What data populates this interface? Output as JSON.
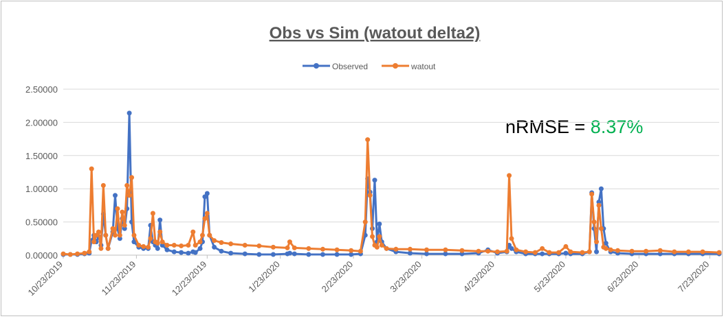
{
  "chart_data": {
    "type": "line",
    "title": "Obs vs Sim (watout delta2)",
    "annotation_label": "nRMSE = ",
    "annotation_value": "8.37%",
    "annotation_value_color": "#00b050",
    "legend": "top",
    "grid": true,
    "x": [
      "10/23/2019",
      "10/26/2019",
      "10/29/2019",
      "11/1/2019",
      "11/3/2019",
      "11/4/2019",
      "11/5/2019",
      "11/6/2019",
      "11/7/2019",
      "11/8/2019",
      "11/9/2019",
      "11/10/2019",
      "11/11/2019",
      "11/13/2019",
      "11/14/2019",
      "11/15/2019",
      "11/16/2019",
      "11/17/2019",
      "11/18/2019",
      "11/19/2019",
      "11/20/2019",
      "11/21/2019",
      "11/22/2019",
      "11/24/2019",
      "11/26/2019",
      "11/28/2019",
      "11/29/2019",
      "11/30/2019",
      "12/1/2019",
      "12/2/2019",
      "12/3/2019",
      "12/4/2019",
      "12/6/2019",
      "12/9/2019",
      "12/12/2019",
      "12/15/2019",
      "12/17/2019",
      "12/18/2019",
      "12/20/2019",
      "12/21/2019",
      "12/22/2019",
      "12/23/2019",
      "12/24/2019",
      "12/26/2019",
      "12/29/2019",
      "1/2/2020",
      "1/8/2020",
      "1/14/2020",
      "1/20/2020",
      "1/26/2020",
      "1/27/2020",
      "1/29/2020",
      "2/4/2020",
      "2/10/2020",
      "2/16/2020",
      "2/22/2020",
      "2/26/2020",
      "2/28/2020",
      "2/29/2020",
      "3/1/2020",
      "3/2/2020",
      "3/3/2020",
      "3/4/2020",
      "3/5/2020",
      "3/6/2020",
      "3/8/2020",
      "3/12/2020",
      "3/18/2020",
      "3/25/2020",
      "4/2/2020",
      "4/9/2020",
      "4/16/2020",
      "4/20/2020",
      "4/24/2020",
      "4/28/2020",
      "4/29/2020",
      "4/30/2020",
      "5/2/2020",
      "5/6/2020",
      "5/10/2020",
      "5/13/2020",
      "5/16/2020",
      "5/20/2020",
      "5/23/2020",
      "5/25/2020",
      "5/30/2020",
      "6/2/2020",
      "6/3/2020",
      "6/4/2020",
      "6/5/2020",
      "6/6/2020",
      "6/7/2020",
      "6/8/2020",
      "6/9/2020",
      "6/11/2020",
      "6/14/2020",
      "6/20/2020",
      "6/26/2020",
      "7/2/2020",
      "7/8/2020",
      "7/14/2020",
      "7/20/2020",
      "7/27/2020"
    ],
    "series": [
      {
        "name": "Observed",
        "color": "#4472c4",
        "values": [
          0.01,
          0.01,
          0.01,
          0.02,
          0.03,
          0.22,
          0.3,
          0.2,
          0.28,
          0.15,
          0.62,
          0.3,
          0.1,
          0.35,
          0.9,
          0.4,
          0.25,
          0.55,
          0.4,
          0.7,
          2.14,
          0.5,
          0.2,
          0.12,
          0.1,
          0.1,
          0.45,
          0.2,
          0.15,
          0.1,
          0.53,
          0.15,
          0.08,
          0.05,
          0.04,
          0.03,
          0.05,
          0.04,
          0.1,
          0.2,
          0.88,
          0.93,
          0.3,
          0.12,
          0.06,
          0.03,
          0.02,
          0.01,
          0.01,
          0.02,
          0.03,
          0.02,
          0.01,
          0.01,
          0.01,
          0.01,
          0.02,
          0.3,
          1.15,
          0.95,
          0.4,
          1.13,
          0.2,
          0.47,
          0.2,
          0.1,
          0.05,
          0.03,
          0.02,
          0.02,
          0.02,
          0.03,
          0.08,
          0.03,
          0.05,
          0.15,
          0.1,
          0.05,
          0.02,
          0.02,
          0.02,
          0.02,
          0.02,
          0.03,
          0.02,
          0.02,
          0.05,
          0.94,
          0.4,
          0.05,
          0.8,
          1.0,
          0.4,
          0.18,
          0.05,
          0.03,
          0.02,
          0.02,
          0.02,
          0.02,
          0.02,
          0.02,
          0.02
        ]
      },
      {
        "name": "watout",
        "color": "#ed7d31",
        "values": [
          0.02,
          0.01,
          0.02,
          0.03,
          0.05,
          1.3,
          0.2,
          0.3,
          0.35,
          0.1,
          1.05,
          0.3,
          0.1,
          0.4,
          0.3,
          0.7,
          0.3,
          0.65,
          0.45,
          1.05,
          0.9,
          1.17,
          0.3,
          0.15,
          0.13,
          0.12,
          0.25,
          0.63,
          0.2,
          0.18,
          0.35,
          0.2,
          0.15,
          0.15,
          0.14,
          0.15,
          0.35,
          0.15,
          0.2,
          0.3,
          0.55,
          0.63,
          0.3,
          0.22,
          0.19,
          0.17,
          0.15,
          0.14,
          0.12,
          0.11,
          0.2,
          0.11,
          0.1,
          0.09,
          0.08,
          0.07,
          0.06,
          0.5,
          1.74,
          0.9,
          0.28,
          0.15,
          0.12,
          0.28,
          0.15,
          0.1,
          0.09,
          0.09,
          0.08,
          0.08,
          0.07,
          0.06,
          0.06,
          0.05,
          0.06,
          1.2,
          0.25,
          0.08,
          0.05,
          0.04,
          0.1,
          0.04,
          0.04,
          0.13,
          0.05,
          0.04,
          0.05,
          0.92,
          0.5,
          0.2,
          0.75,
          0.4,
          0.12,
          0.1,
          0.08,
          0.07,
          0.06,
          0.06,
          0.07,
          0.05,
          0.05,
          0.05,
          0.04
        ]
      }
    ],
    "xlim": [
      "10/23/2019",
      "7/27/2020"
    ],
    "xticks": [
      "10/23/2019",
      "11/23/2019",
      "12/23/2019",
      "1/23/2020",
      "2/23/2020",
      "3/23/2020",
      "4/23/2020",
      "5/23/2020",
      "6/23/2020",
      "7/23/2020"
    ],
    "ylim": [
      0,
      2.5
    ],
    "yticks": [
      {
        "value": 0,
        "label": "0.00000"
      },
      {
        "value": 0.5,
        "label": "0.50000"
      },
      {
        "value": 1,
        "label": "1.00000"
      },
      {
        "value": 1.5,
        "label": "1.50000"
      },
      {
        "value": 2,
        "label": "2.00000"
      },
      {
        "value": 2.5,
        "label": "2.50000"
      }
    ]
  }
}
